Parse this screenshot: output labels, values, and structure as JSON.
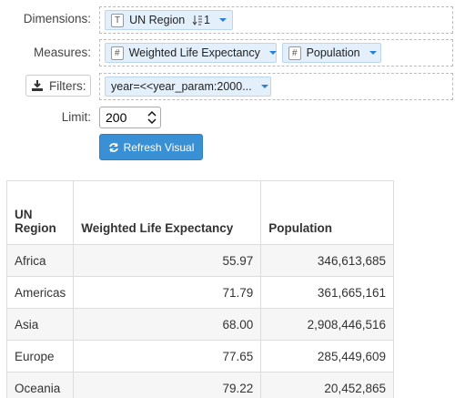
{
  "form": {
    "dimensions": {
      "label": "Dimensions:",
      "items": [
        {
          "icon": "T",
          "name": "UN Region",
          "sort": "1"
        }
      ]
    },
    "measures": {
      "label": "Measures:",
      "items": [
        {
          "icon": "#",
          "name": "Weighted Life Expectancy"
        },
        {
          "icon": "#",
          "name": "Population"
        }
      ]
    },
    "filters": {
      "label": "Filters:",
      "items": [
        {
          "name": "year=<<year_param:2000..."
        }
      ]
    },
    "limit": {
      "label": "Limit:",
      "value": "200"
    },
    "button": "Refresh Visual"
  },
  "table": {
    "headers": [
      "UN Region",
      "Weighted Life Expectancy",
      "Population"
    ],
    "rows": [
      [
        "Africa",
        "55.97",
        "346,613,685"
      ],
      [
        "Americas",
        "71.79",
        "361,665,161"
      ],
      [
        "Asia",
        "68.00",
        "2,908,446,516"
      ],
      [
        "Europe",
        "77.65",
        "285,449,609"
      ],
      [
        "Oceania",
        "79.22",
        "20,452,865"
      ]
    ]
  }
}
